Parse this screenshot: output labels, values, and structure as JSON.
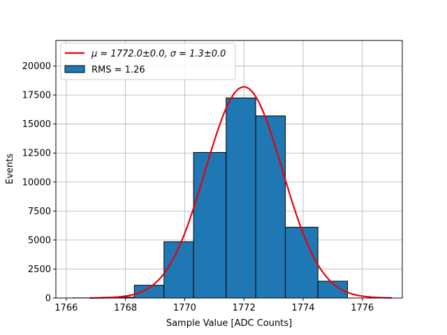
{
  "chart_data": {
    "type": "bar",
    "title": "",
    "xlabel": "Sample Value [ADC Counts]",
    "ylabel": "Events",
    "xlim": [
      1765.65,
      1777.35
    ],
    "ylim": [
      0,
      22200
    ],
    "grid": true,
    "legend_position": "upper-left",
    "xticks": [
      1766,
      1768,
      1770,
      1772,
      1774,
      1776
    ],
    "yticks": [
      0,
      2500,
      5000,
      7500,
      10000,
      12500,
      15000,
      17500,
      20000
    ],
    "bars": {
      "name": "RMS = 1.26",
      "color": "#1f77b4",
      "edgecolor": "#000000",
      "bin_edges": [
        1766.2,
        1767.2,
        1768.3,
        1769.3,
        1770.3,
        1771.4,
        1772.4,
        1773.4,
        1774.5,
        1775.5
      ],
      "values": [
        10,
        70,
        1100,
        4850,
        12550,
        17250,
        15700,
        6100,
        1450,
        100
      ]
    },
    "fit": {
      "name": "μ = 1772.0±0.0, σ = 1.3±0.0",
      "color": "#e8000b",
      "mu": 1772.0,
      "sigma": 1.3,
      "amplitude": 18200,
      "x_range": [
        1766.8,
        1777.0
      ]
    }
  }
}
